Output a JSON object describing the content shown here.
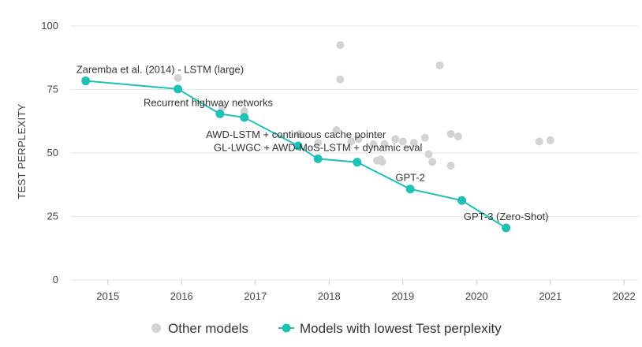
{
  "chart_data": {
    "type": "scatter",
    "title": "",
    "xlabel": "",
    "ylabel": "TEST PERPLEXITY",
    "xlim": [
      2014.5,
      2022.2
    ],
    "ylim": [
      0,
      100
    ],
    "x_ticks": [
      2015,
      2016,
      2017,
      2018,
      2019,
      2020,
      2021,
      2022
    ],
    "y_ticks": [
      0,
      25,
      50,
      75,
      100
    ],
    "grid": true,
    "legend_position": "bottom",
    "colors": {
      "other": "#d3d3d3",
      "best": "#1fc0b5",
      "grid": "#e6e6e6"
    },
    "series": [
      {
        "name": "Other models",
        "kind": "scatter",
        "points": [
          [
            2015.95,
            79.5
          ],
          [
            2016.55,
            68.0
          ],
          [
            2016.85,
            66.5
          ],
          [
            2017.6,
            57.5
          ],
          [
            2017.85,
            54.0
          ],
          [
            2018.1,
            59.0
          ],
          [
            2018.15,
            92.5
          ],
          [
            2018.15,
            79.0
          ],
          [
            2018.3,
            54.5
          ],
          [
            2018.4,
            55.5
          ],
          [
            2018.6,
            53.5
          ],
          [
            2018.65,
            47.0
          ],
          [
            2018.7,
            47.5
          ],
          [
            2018.72,
            46.5
          ],
          [
            2018.75,
            53.5
          ],
          [
            2018.9,
            55.5
          ],
          [
            2019.0,
            54.5
          ],
          [
            2019.15,
            54.0
          ],
          [
            2019.3,
            56.0
          ],
          [
            2019.35,
            49.5
          ],
          [
            2019.4,
            46.5
          ],
          [
            2019.5,
            84.5
          ],
          [
            2019.65,
            57.5
          ],
          [
            2019.65,
            45.0
          ],
          [
            2019.75,
            56.5
          ],
          [
            2020.85,
            54.5
          ],
          [
            2021.0,
            55.0
          ]
        ]
      },
      {
        "name": "Models with lowest Test perplexity",
        "kind": "line",
        "points": [
          [
            2014.7,
            78.4
          ],
          [
            2015.95,
            75.2
          ],
          [
            2016.52,
            65.4
          ],
          [
            2016.85,
            64.0
          ],
          [
            2017.58,
            52.8
          ],
          [
            2017.85,
            47.7
          ],
          [
            2018.38,
            46.4
          ],
          [
            2019.1,
            35.8
          ],
          [
            2019.8,
            31.3
          ],
          [
            2020.4,
            20.5
          ]
        ]
      }
    ],
    "annotations": [
      {
        "text": "Zaremba et al. (2014) - LSTM (large)",
        "x": 2014.7,
        "y": 78.4
      },
      {
        "text": "Recurrent highway networks",
        "x": 2016.5,
        "y": 65.4
      },
      {
        "text": "AWD-LSTM + continuous cache pointer",
        "x": 2017.55,
        "y": 52.8
      },
      {
        "text": "GL-LWGC + AWD-MoS-LSTM + dynamic eval",
        "x": 2017.85,
        "y": 47.7
      },
      {
        "text": "GPT-2",
        "x": 2019.1,
        "y": 35.8
      },
      {
        "text": "GPT-3 (Zero-Shot)",
        "x": 2020.4,
        "y": 20.5
      }
    ],
    "legend": [
      {
        "label": "Other models",
        "series_index": 0
      },
      {
        "label": "Models with lowest Test perplexity",
        "series_index": 1
      }
    ]
  }
}
